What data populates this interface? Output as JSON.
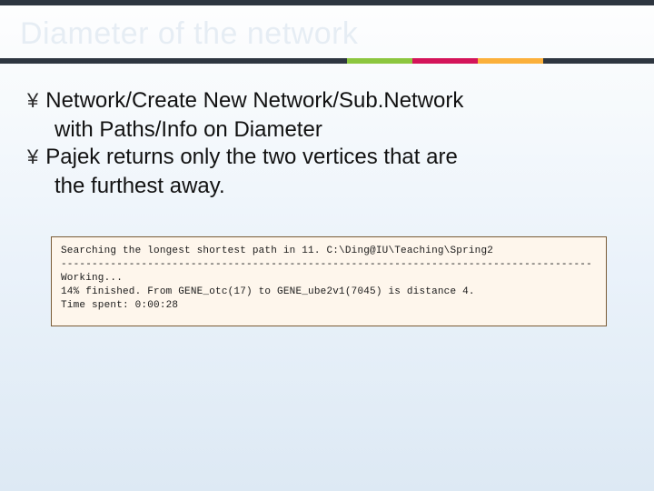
{
  "colors": {
    "header_band": "#2e3640",
    "title_color": "#e6edf4",
    "accent1": "#8cc63f",
    "accent2": "#d4145a",
    "accent3": "#fbb03b",
    "console_bg": "#fef6ec",
    "console_border": "#7a5b36"
  },
  "title": "Diameter of the network",
  "bullets": [
    {
      "line1": "Network/Create New Network/Sub.Network",
      "line2": "with Paths/Info on Diameter"
    },
    {
      "line1": "Pajek returns only the two vertices that are",
      "line2": "the furthest away."
    }
  ],
  "console": {
    "line1": "Searching the longest shortest path in 11. C:\\Ding@IU\\Teaching\\Spring2",
    "dashes": "--------------------------------------------------------------------------------------",
    "line2": "Working...",
    "line3": "14% finished.  From GENE_otc(17) to GENE_ube2v1(7045) is distance 4.",
    "line4": "Time spent:   0:00:28"
  }
}
